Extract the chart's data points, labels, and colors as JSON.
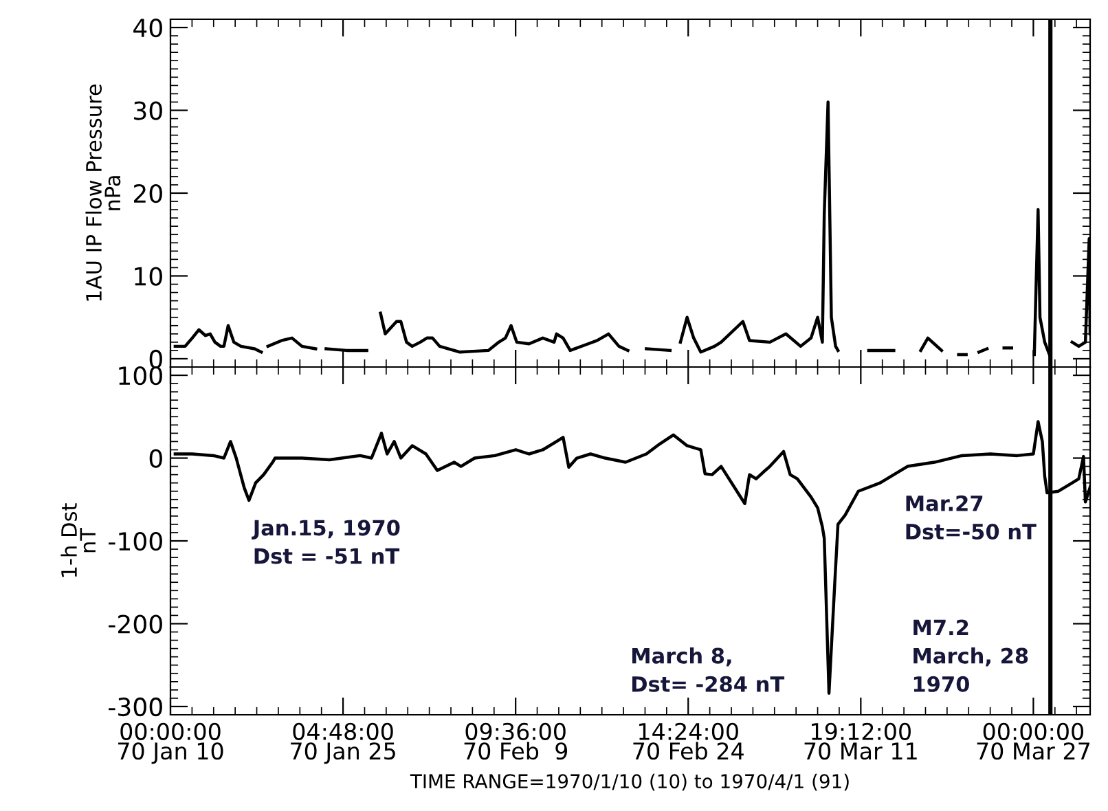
{
  "chart_data": [
    {
      "type": "line",
      "ylabel": "1AU IP Flow Pressure\nnPa",
      "tick_labels": "y",
      "xlim": [
        "1970-01-10T00:00",
        "1970-04-01T00:00"
      ],
      "ylim": [
        -1,
        41
      ],
      "yticks": [
        0,
        10,
        20,
        30,
        40
      ],
      "xticks": [
        {
          "value": "1970-01-10T00:00",
          "label": null
        },
        {
          "value": "1970-01-25T04:48",
          "label": null
        },
        {
          "value": "1970-02-09T09:36",
          "label": null
        },
        {
          "value": "1970-02-24T14:24",
          "label": null
        },
        {
          "value": "1970-03-11T19:12",
          "label": null
        },
        {
          "value": "1970-03-27T00:00",
          "label": null
        }
      ],
      "x": [
        "1970-01-10T10:00",
        "1970-01-11T07:00",
        "1970-01-11T22:00",
        "1970-01-12T12:00",
        "1970-01-13T02:00",
        "1970-01-13T12:00",
        "1970-01-13T22:00",
        "1970-01-14T10:00",
        "1970-01-14T17:00",
        "1970-01-15T02:00",
        "1970-01-15T14:00",
        "1970-01-16T05:00",
        "1970-01-17T10:00",
        "1970-01-18T00:00",
        "1970-01-18T07:00",
        "1970-01-18T14:00",
        "1970-01-19T19:00",
        "1970-01-20T17:00",
        "1970-01-21T14:00",
        "1970-01-22T19:00",
        "1970-01-23T05:00",
        "1970-01-23T17:00",
        "1970-01-25T12:00",
        "1970-01-27T07:00",
        "1970-01-27T22:00",
        "1970-01-28T12:00",
        "1970-01-28T22:00",
        "1970-01-29T22:00",
        "1970-01-30T07:00",
        "1970-01-30T19:00",
        "1970-01-31T07:00",
        "1970-02-01T00:00",
        "1970-02-01T14:00",
        "1970-02-02T02:00",
        "1970-02-02T17:00",
        "1970-02-04T12:00",
        "1970-02-07T00:00",
        "1970-02-07T22:00",
        "1970-02-08T12:00",
        "1970-02-09T00:00",
        "1970-02-09T12:00",
        "1970-02-10T14:00",
        "1970-02-11T19:00",
        "1970-02-12T19:00",
        "1970-02-13T00:00",
        "1970-02-13T14:00",
        "1970-02-14T05:00",
        "1970-02-15T19:00",
        "1970-02-16T14:00",
        "1970-02-17T14:00",
        "1970-02-18T12:00",
        "1970-02-19T07:00",
        "1970-02-20T02:00",
        "1970-02-20T22:00",
        "1970-02-23T00:00",
        "1970-02-23T10:00",
        "1970-02-23T22:00",
        "1970-02-24T12:00",
        "1970-02-25T02:00",
        "1970-02-25T17:00",
        "1970-02-26T22:00",
        "1970-02-27T12:00",
        "1970-03-01T10:00",
        "1970-03-02T00:00",
        "1970-03-03T19:00",
        "1970-03-05T05:00",
        "1970-03-06T12:00",
        "1970-03-07T10:00",
        "1970-03-08T00:00",
        "1970-03-08T10:00",
        "1970-03-08T14:00",
        "1970-03-08T22:00",
        "1970-03-09T05:00",
        "1970-03-09T14:00",
        "1970-03-09T19:00",
        "1970-03-11T00:00",
        "1970-03-12T12:00",
        "1970-03-14T17:00",
        "1970-03-15T22:00",
        "1970-03-17T02:00",
        "1970-03-17T17:00",
        "1970-03-18T22:00",
        "1970-03-19T19:00",
        "1970-03-20T10:00",
        "1970-03-21T02:00",
        "1970-03-21T12:00",
        "1970-03-22T05:00",
        "1970-03-22T22:00",
        "1970-03-23T19:00",
        "1970-03-24T10:00",
        "1970-03-25T02:00",
        "1970-03-26T00:00",
        "1970-03-27T02:00",
        "1970-03-27T10:00",
        "1970-03-27T14:00",
        "1970-03-28T00:00",
        "1970-03-28T10:00",
        "1970-03-29T10:00",
        "1970-03-30T10:00",
        "1970-03-31T00:00",
        "1970-03-31T14:00",
        "1970-03-31T22:00",
        "1970-04-01T00:00"
      ],
      "series": [
        {
          "color": "#000000",
          "values": [
            1.5,
            1.5,
            2.5,
            3.5,
            2.8,
            3,
            2,
            1.5,
            1.5,
            4,
            2,
            1.5,
            1.2,
            0.8,
            null,
            1.5,
            2.2,
            2.5,
            1.5,
            1.2,
            null,
            1.2,
            1.0,
            1.0,
            null,
            5.5,
            3,
            4.5,
            4.5,
            2,
            1.5,
            2,
            2.5,
            2.5,
            1.5,
            0.8,
            1,
            2,
            2.5,
            4,
            2,
            1.8,
            2.5,
            2,
            3,
            2.5,
            1,
            1.8,
            2.2,
            3,
            1.5,
            1,
            null,
            1.2,
            1.0,
            null,
            2,
            5,
            2.5,
            0.8,
            1.5,
            2,
            4.5,
            2.2,
            2,
            3,
            1.5,
            2.5,
            5,
            2,
            17.5,
            31,
            5,
            1.5,
            1,
            null,
            1,
            1,
            null,
            1,
            2.5,
            1,
            null,
            0.5,
            0.5,
            null,
            0.8,
            1.2,
            null,
            1.3,
            1.3,
            null,
            0.5,
            18,
            5,
            2,
            0.5,
            null,
            2,
            1.5,
            2,
            14.5,
            3
          ]
        }
      ],
      "ref_lines": [
        {
          "axis": "x",
          "value": "1970-03-28T12:00",
          "color": "#000000"
        }
      ]
    },
    {
      "type": "line",
      "ylabel": "1-h Dst\nnT",
      "xlabel": "TIME RANGE=1970/1/10 (10) to 1970/4/1 (91)",
      "xlim": [
        "1970-01-10T00:00",
        "1970-04-01T00:00"
      ],
      "ylim": [
        -310,
        110
      ],
      "yticks": [
        100,
        0,
        -100,
        -200,
        -300
      ],
      "xticks": [
        {
          "value": "1970-01-10T00:00",
          "label": "00:00:00\n70 Jan 10"
        },
        {
          "value": "1970-01-25T04:48",
          "label": "04:48:00\n70 Jan 25"
        },
        {
          "value": "1970-02-09T09:36",
          "label": "09:36:00\n70 Feb  9"
        },
        {
          "value": "1970-02-24T14:24",
          "label": "14:24:00\n70 Feb 24"
        },
        {
          "value": "1970-03-11T19:12",
          "label": "19:12:00\n70 Mar 11"
        },
        {
          "value": "1970-03-27T00:00",
          "label": "00:00:00\n70 Mar 27"
        }
      ],
      "x": [
        "1970-01-10T10:00",
        "1970-01-11T22:00",
        "1970-01-13T19:00",
        "1970-01-14T17:00",
        "1970-01-15T07:00",
        "1970-01-15T19:00",
        "1970-01-16T12:00",
        "1970-01-16T22:00",
        "1970-01-17T12:00",
        "1970-01-18T05:00",
        "1970-01-19T00:00",
        "1970-01-19T05:00",
        "1970-01-21T14:00",
        "1970-01-24T00:00",
        "1970-01-26T17:00",
        "1970-01-27T17:00",
        "1970-01-28T14:00",
        "1970-01-29T02:00",
        "1970-01-29T17:00",
        "1970-01-30T07:00",
        "1970-01-31T07:00",
        "1970-02-01T12:00",
        "1970-02-02T12:00",
        "1970-02-04T00:00",
        "1970-02-04T14:00",
        "1970-02-05T19:00",
        "1970-02-07T14:00",
        "1970-02-09T10:00",
        "1970-02-10T14:00",
        "1970-02-11T19:00",
        "1970-02-13T00:00",
        "1970-02-13T14:00",
        "1970-02-14T02:00",
        "1970-02-14T19:00",
        "1970-02-16T00:00",
        "1970-02-17T07:00",
        "1970-02-19T02:00",
        "1970-02-20T22:00",
        "1970-02-22T02:00",
        "1970-02-23T07:00",
        "1970-02-24T12:00",
        "1970-02-25T17:00",
        "1970-02-26T02:00",
        "1970-02-26T17:00",
        "1970-02-27T12:00",
        "1970-03-01T14:00",
        "1970-03-02T00:00",
        "1970-03-02T14:00",
        "1970-03-03T05:00",
        "1970-03-03T19:00",
        "1970-03-05T00:00",
        "1970-03-05T14:00",
        "1970-03-06T05:00",
        "1970-03-07T10:00",
        "1970-03-08T00:00",
        "1970-03-08T10:00",
        "1970-03-08T14:00",
        "1970-03-09T00:00",
        "1970-03-09T12:00",
        "1970-03-09T19:00",
        "1970-03-10T10:00",
        "1970-03-11T14:00",
        "1970-03-13T12:00",
        "1970-03-15T22:00",
        "1970-03-18T07:00",
        "1970-03-20T17:00",
        "1970-03-23T05:00",
        "1970-03-25T14:00",
        "1970-03-27T00:00",
        "1970-03-27T10:00",
        "1970-03-27T19:00",
        "1970-03-28T00:00",
        "1970-03-28T05:00",
        "1970-03-29T05:00",
        "1970-03-30T10:00",
        "1970-03-31T00:00",
        "1970-03-31T10:00",
        "1970-03-31T14:00",
        "1970-04-01T00:00"
      ],
      "series": [
        {
          "color": "#000000",
          "values": [
            5,
            5,
            3,
            0,
            20,
            0,
            -36,
            -51,
            -30,
            -20,
            -5,
            0,
            0,
            -2,
            3,
            0,
            30,
            5,
            20,
            0,
            15,
            5,
            -15,
            -5,
            -10,
            0,
            3,
            10,
            5,
            10,
            20,
            25,
            -11,
            0,
            5,
            0,
            -5,
            5,
            17,
            28,
            15,
            10,
            -19,
            -20,
            -10,
            -55,
            -20,
            -25,
            -17,
            -10,
            8,
            -20,
            -25,
            -47,
            -60,
            -83,
            -97,
            -284,
            -153,
            -80,
            -69,
            -40,
            -30,
            -10,
            -5,
            3,
            5,
            3,
            5,
            44,
            20,
            -22,
            -42,
            -40,
            -30,
            -25,
            2,
            -53,
            -35
          ]
        }
      ],
      "ref_lines": [
        {
          "axis": "x",
          "value": "1970-03-28T12:00",
          "color": "#000000"
        }
      ],
      "annotations": [
        {
          "text": "Jan.15, 1970\nDst = -51 nT",
          "x": "1970-01-16T22:00",
          "y": -51
        },
        {
          "text": "March 8,\nDst= -284 nT",
          "x": "1970-03-09T00:00",
          "y": -284
        },
        "Mar.27\nDst=-50 nT",
        "M7.2\nMarch, 28\n1970"
      ]
    }
  ]
}
